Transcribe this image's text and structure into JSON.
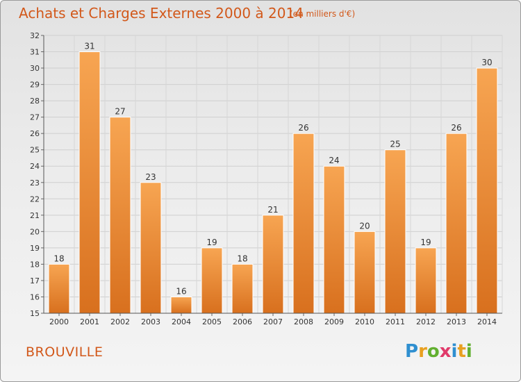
{
  "title": "Achats et Charges Externes 2000 à 2014",
  "unit": "(en milliers d'€)",
  "commune": "BROUVILLE",
  "logo": {
    "letters": [
      "P",
      "r",
      "o",
      "x",
      "i",
      "t",
      "i"
    ],
    "colors": [
      "#2f8fd0",
      "#e8a020",
      "#62b030",
      "#e03a6a",
      "#2f8fd0",
      "#e8a020",
      "#62b030"
    ]
  },
  "colors": {
    "bar": "#f0903a",
    "title": "#d2581a"
  },
  "chart_data": {
    "type": "bar",
    "categories": [
      "2000",
      "2001",
      "2002",
      "2003",
      "2004",
      "2005",
      "2006",
      "2007",
      "2008",
      "2009",
      "2010",
      "2011",
      "2012",
      "2013",
      "2014"
    ],
    "values": [
      18,
      31,
      27,
      23,
      16,
      19,
      18,
      21,
      26,
      24,
      20,
      25,
      19,
      26,
      30
    ],
    "title": "Achats et Charges Externes 2000 à 2014",
    "xlabel": "",
    "ylabel": "",
    "ylim": [
      15,
      32
    ],
    "yticks": [
      15,
      16,
      17,
      18,
      19,
      20,
      21,
      22,
      23,
      24,
      25,
      26,
      27,
      28,
      29,
      30,
      31,
      32
    ],
    "grid": true,
    "legend": "none"
  }
}
